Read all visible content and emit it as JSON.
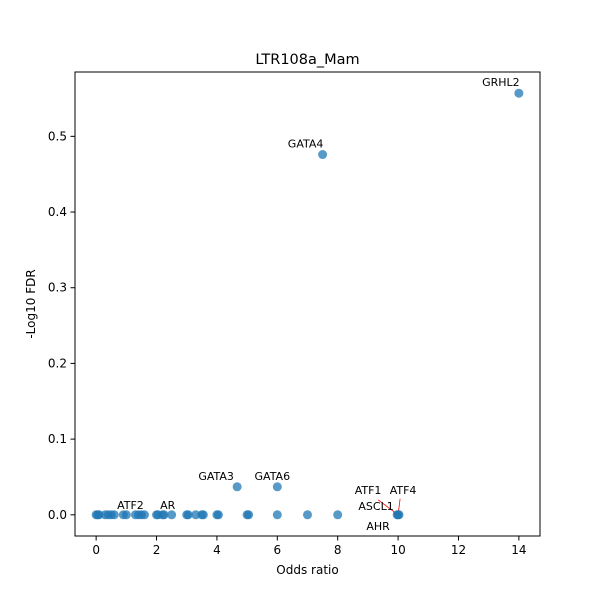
{
  "chart_data": {
    "type": "scatter",
    "title": "LTR108a_Mam",
    "xlabel": "Odds ratio",
    "ylabel": "-Log10 FDR",
    "xlim": [
      -0.7,
      14.7
    ],
    "ylim": [
      -0.028,
      0.585
    ],
    "xticks": [
      0,
      2,
      4,
      6,
      8,
      10,
      12,
      14
    ],
    "yticks": [
      0.0,
      0.1,
      0.2,
      0.3,
      0.4,
      0.5
    ],
    "ytick_labels": [
      "0.0",
      "0.1",
      "0.2",
      "0.3",
      "0.4",
      "0.5"
    ],
    "grid": false,
    "point_color": "#1f77b4",
    "leader_line_color": "#ff0000",
    "points": [
      {
        "x": 0.0,
        "y": 0.0
      },
      {
        "x": 0.05,
        "y": 0.0
      },
      {
        "x": 0.1,
        "y": 0.0
      },
      {
        "x": 0.3,
        "y": 0.0
      },
      {
        "x": 0.4,
        "y": 0.0
      },
      {
        "x": 0.5,
        "y": 0.0
      },
      {
        "x": 0.6,
        "y": 0.0
      },
      {
        "x": 0.9,
        "y": 0.0
      },
      {
        "x": 1.0,
        "y": 0.0
      },
      {
        "x": 1.3,
        "y": 0.0
      },
      {
        "x": 1.4,
        "y": 0.0
      },
      {
        "x": 1.5,
        "y": 0.0
      },
      {
        "x": 1.6,
        "y": 0.0
      },
      {
        "x": 2.0,
        "y": 0.0
      },
      {
        "x": 2.05,
        "y": 0.0
      },
      {
        "x": 2.2,
        "y": 0.0
      },
      {
        "x": 2.25,
        "y": 0.0
      },
      {
        "x": 2.5,
        "y": 0.0
      },
      {
        "x": 3.0,
        "y": 0.0
      },
      {
        "x": 3.05,
        "y": 0.0
      },
      {
        "x": 3.3,
        "y": 0.0
      },
      {
        "x": 3.5,
        "y": 0.0
      },
      {
        "x": 3.55,
        "y": 0.0
      },
      {
        "x": 4.0,
        "y": 0.0
      },
      {
        "x": 4.05,
        "y": 0.0
      },
      {
        "x": 5.0,
        "y": 0.0
      },
      {
        "x": 5.05,
        "y": 0.0
      },
      {
        "x": 6.0,
        "y": 0.0
      },
      {
        "x": 7.0,
        "y": 0.0
      },
      {
        "x": 8.0,
        "y": 0.0
      },
      {
        "x": 9.97,
        "y": 0.0
      },
      {
        "x": 10.0,
        "y": 0.0
      },
      {
        "x": 10.03,
        "y": 0.0
      },
      {
        "x": 4.67,
        "y": 0.037
      },
      {
        "x": 6.0,
        "y": 0.037
      },
      {
        "x": 7.5,
        "y": 0.476
      },
      {
        "x": 14.0,
        "y": 0.557
      }
    ],
    "annotations": [
      {
        "text": "GRHL2",
        "x": 14.0,
        "y": 0.557
      },
      {
        "text": "GATA4",
        "x": 7.5,
        "y": 0.476
      },
      {
        "text": "GATA3",
        "x": 4.67,
        "y": 0.037
      },
      {
        "text": "GATA6",
        "x": 6.0,
        "y": 0.037
      },
      {
        "text": "ATF2",
        "x": 1.6,
        "y": 0.0
      },
      {
        "text": "AR",
        "x": 3.0,
        "y": 0.0
      },
      {
        "text": "ATF1",
        "x": 10.0,
        "y": 0.0
      },
      {
        "text": "ATF4",
        "x": 10.0,
        "y": 0.0
      },
      {
        "text": "ASCL1",
        "x": 10.0,
        "y": 0.0
      },
      {
        "text": "AHR",
        "x": 10.0,
        "y": 0.0
      }
    ]
  }
}
